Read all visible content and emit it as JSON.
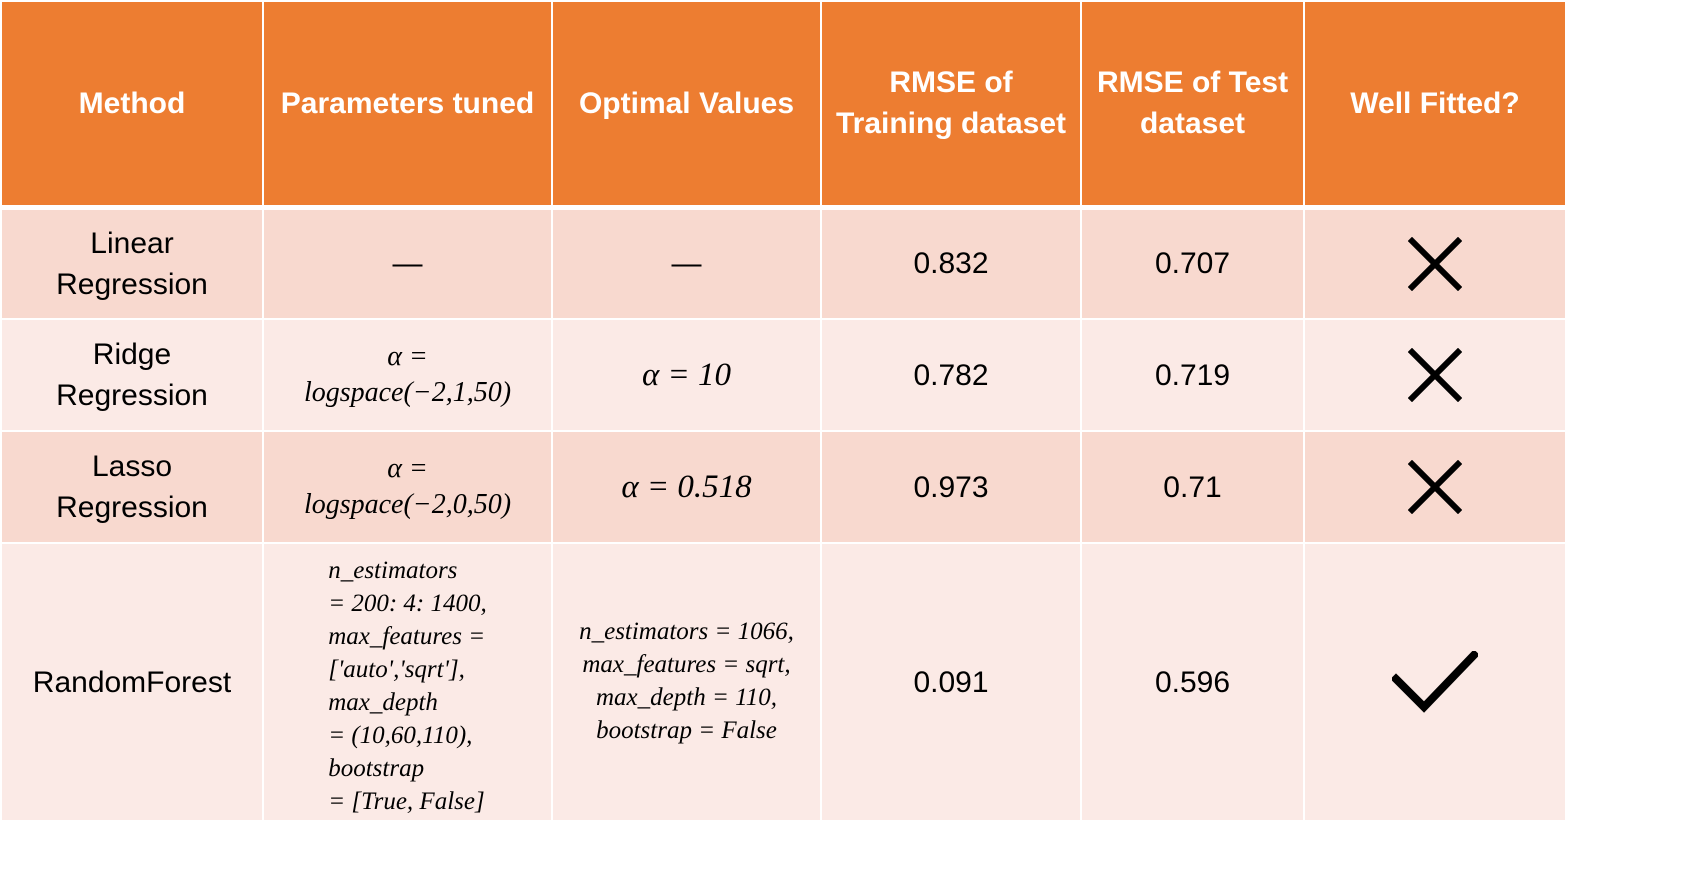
{
  "table": {
    "headers": {
      "method": "Method",
      "params": "Parameters tuned",
      "optimal": "Optimal Values",
      "rmse_train_1": "RMSE of",
      "rmse_train_2": "Training dataset",
      "rmse_test_1": "RMSE of Test",
      "rmse_test_2": "dataset",
      "fitted": "Well Fitted?"
    },
    "rows": [
      {
        "method_1": "Linear",
        "method_2": "Regression",
        "params": "—",
        "optimal": "—",
        "rmse_train": "0.832",
        "rmse_test": "0.707",
        "fitted_icon": "cross-icon"
      },
      {
        "method_1": "Ridge",
        "method_2": "Regression",
        "params_1": "α =",
        "params_2": "logspace(−2,1,50)",
        "optimal": "α = 10",
        "rmse_train": "0.782",
        "rmse_test": "0.719",
        "fitted_icon": "cross-icon"
      },
      {
        "method_1": "Lasso",
        "method_2": "Regression",
        "params_1": "α =",
        "params_2": "logspace(−2,0,50)",
        "optimal": "α = 0.518",
        "rmse_train": "0.973",
        "rmse_test": "0.71",
        "fitted_icon": "cross-icon"
      },
      {
        "method_1": "RandomForest",
        "params_lines": [
          "n_estimators",
          "= 200: 4: 1400,",
          "max_features =",
          "['auto','sqrt'],",
          "max_depth",
          "= (10,60,110),",
          "bootstrap",
          "= [True, False]"
        ],
        "optimal_lines": [
          "n_estimators = 1066,",
          "max_features = sqrt,",
          "max_depth = 110,",
          "bootstrap = False"
        ],
        "rmse_train": "0.091",
        "rmse_test": "0.596",
        "fitted_icon": "check-icon"
      }
    ]
  },
  "colors": {
    "header_bg": "#ed7d31",
    "row_dark": "#f8d9cf",
    "row_light": "#fbeae6"
  }
}
